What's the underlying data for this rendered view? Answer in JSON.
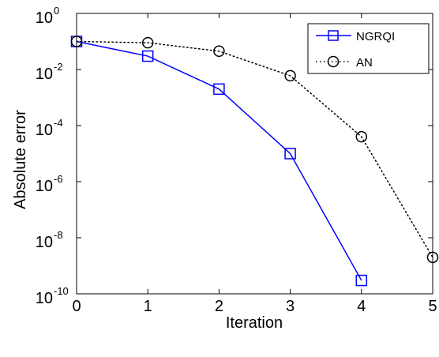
{
  "chart_data": {
    "type": "line",
    "xlabel": "Iteration",
    "ylabel": "Absolute error",
    "xlim": [
      0,
      5
    ],
    "ylim": [
      1e-10,
      1
    ],
    "yscale": "log",
    "grid": false,
    "legend_position": "top-right",
    "x_ticks": [
      "0",
      "1",
      "2",
      "3",
      "4",
      "5"
    ],
    "y_ticks": [
      {
        "base": "10",
        "exp": "0"
      },
      {
        "base": "10",
        "exp": "-2"
      },
      {
        "base": "10",
        "exp": "-4"
      },
      {
        "base": "10",
        "exp": "-6"
      },
      {
        "base": "10",
        "exp": "-8"
      },
      {
        "base": "10",
        "exp": "-10"
      }
    ],
    "series": [
      {
        "name": "NGRQI",
        "color": "#0000ff",
        "line_style": "solid",
        "marker": "square",
        "x": [
          0,
          1,
          2,
          3,
          4
        ],
        "y": [
          0.1,
          0.03,
          0.002,
          1e-05,
          3e-10
        ]
      },
      {
        "name": "AN",
        "color": "#000000",
        "line_style": "dotted",
        "marker": "circle",
        "x": [
          0,
          1,
          2,
          3,
          4,
          5
        ],
        "y": [
          0.1,
          0.09,
          0.045,
          0.006,
          4e-05,
          2e-09
        ]
      }
    ]
  }
}
